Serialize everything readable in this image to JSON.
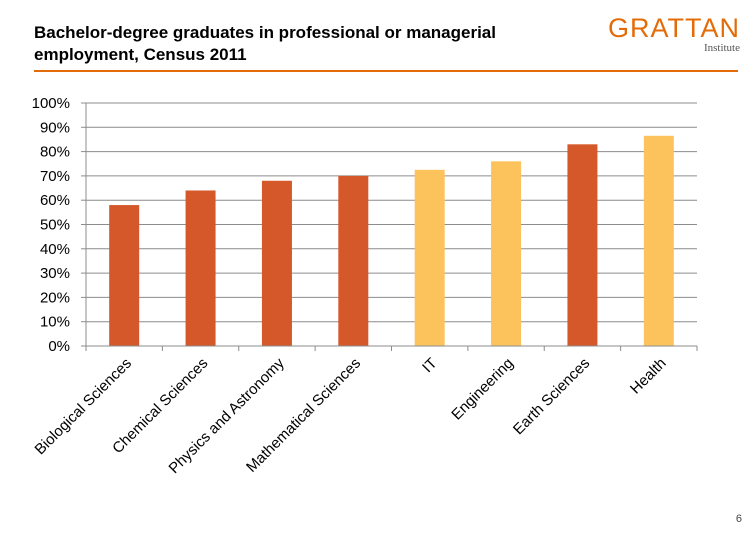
{
  "header": {
    "title": "Bachelor-degree graduates in professional or managerial employment, Census 2011",
    "logo_main": "GRATTAN",
    "logo_sub": "Institute"
  },
  "footer": {
    "page_number": "6"
  },
  "colors": {
    "accent": "#e36c09",
    "bar_dark": "#d5582a",
    "bar_light": "#fcc35d",
    "grid": "#8c8c8c"
  },
  "chart_data": {
    "type": "bar",
    "title": "Bachelor-degree graduates in professional or managerial employment, Census 2011",
    "xlabel": "",
    "ylabel": "",
    "ylim": [
      0,
      100
    ],
    "yticks": [
      "0%",
      "10%",
      "20%",
      "30%",
      "40%",
      "50%",
      "60%",
      "70%",
      "80%",
      "90%",
      "100%"
    ],
    "grid": true,
    "categories": [
      "Biological Sciences",
      "Chemical Sciences",
      "Physics and Astronomy",
      "Mathematical Sciences",
      "IT",
      "Engineering",
      "Earth Sciences",
      "Health"
    ],
    "values": [
      58,
      64,
      68,
      70,
      72.5,
      76,
      83,
      86.5
    ],
    "bar_colors": [
      "#d5582a",
      "#d5582a",
      "#d5582a",
      "#d5582a",
      "#fcc35d",
      "#fcc35d",
      "#d5582a",
      "#fcc35d"
    ]
  }
}
